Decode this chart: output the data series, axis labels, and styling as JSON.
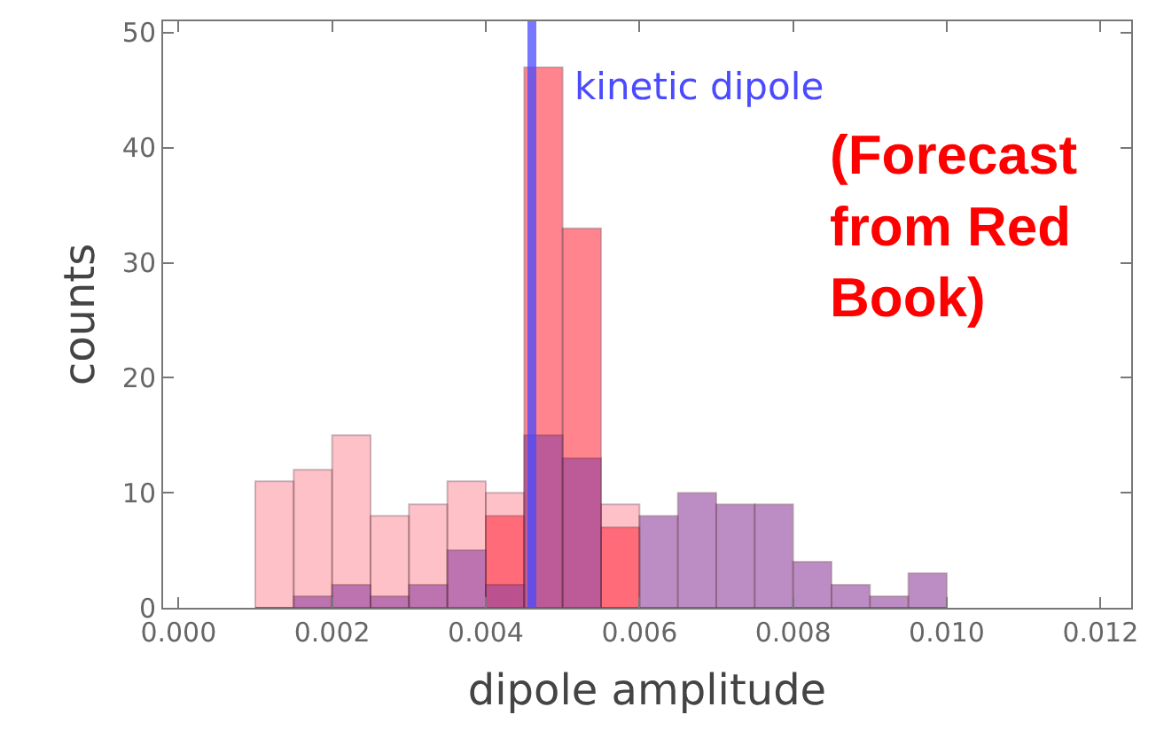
{
  "chart_data": {
    "type": "histogram",
    "xlabel": "dipole amplitude",
    "ylabel": "counts",
    "bins": [
      0.001,
      0.0015,
      0.002,
      0.0025,
      0.003,
      0.0035,
      0.004,
      0.0045,
      0.005,
      0.0055,
      0.006,
      0.0065,
      0.007,
      0.0075,
      0.008,
      0.0085,
      0.009,
      0.0095,
      0.01
    ],
    "series": [
      {
        "color": "#ff99a4",
        "values": [
          11,
          12,
          15,
          8,
          9,
          11,
          10,
          0,
          0,
          9,
          0,
          0,
          0,
          0,
          0,
          0,
          0,
          0
        ]
      },
      {
        "color": "#ff3344",
        "values": [
          0,
          0,
          0,
          0,
          0,
          0,
          8,
          47,
          33,
          7,
          0,
          0,
          0,
          0,
          0,
          0,
          0,
          0
        ]
      },
      {
        "color": "#9040a0",
        "values": [
          0,
          1,
          2,
          1,
          2,
          5,
          2,
          15,
          13,
          0,
          8,
          10,
          9,
          9,
          4,
          2,
          1,
          3
        ]
      }
    ],
    "xlim": [
      -0.0002,
      0.0124
    ],
    "ylim": [
      0,
      51
    ],
    "xticks": [
      {
        "value": 0,
        "label": "0.000"
      },
      {
        "value": 0.002,
        "label": "0.002"
      },
      {
        "value": 0.004,
        "label": "0.004"
      },
      {
        "value": 0.006,
        "label": "0.006"
      },
      {
        "value": 0.008,
        "label": "0.008"
      },
      {
        "value": 0.01,
        "label": "0.010"
      },
      {
        "value": 0.012,
        "label": "0.012"
      }
    ],
    "yticks": [
      0,
      10,
      20,
      30,
      40,
      50
    ],
    "ref_lines": [
      {
        "axis": "x",
        "value": 0.0046,
        "label": "kinetic dipole",
        "color": "#4a4aff"
      }
    ],
    "annotations": [
      "(Forecast\nfrom Red\nBook)"
    ],
    "grid": false
  }
}
